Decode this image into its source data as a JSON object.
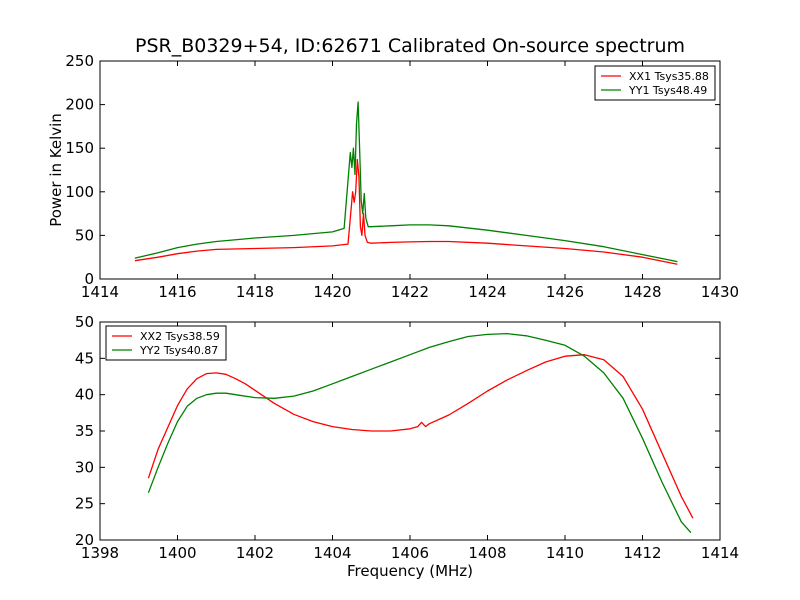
{
  "chart_data": [
    {
      "type": "line",
      "title": "PSR_B0329+54, ID:62671 Calibrated On-source spectrum",
      "xlabel": "",
      "ylabel": "Power in Kelvin",
      "xlim": [
        1414,
        1430
      ],
      "ylim": [
        0,
        250
      ],
      "xticks": [
        1414,
        1416,
        1418,
        1420,
        1422,
        1424,
        1426,
        1428,
        1430
      ],
      "yticks": [
        0,
        50,
        100,
        150,
        200,
        250
      ],
      "grid": false,
      "legend": "top-right",
      "series": [
        {
          "name": "XX1 Tsys35.88",
          "color": "#ff0000",
          "x": [
            1414.9,
            1415.5,
            1416.0,
            1416.5,
            1417.0,
            1418.0,
            1419.0,
            1420.0,
            1420.4,
            1420.48,
            1420.52,
            1420.56,
            1420.6,
            1420.64,
            1420.68,
            1420.72,
            1420.76,
            1420.8,
            1420.84,
            1420.9,
            1421.0,
            1421.5,
            1422.0,
            1422.5,
            1423.0,
            1424.0,
            1425.0,
            1426.0,
            1427.0,
            1428.0,
            1428.9
          ],
          "y": [
            21,
            25,
            29,
            32,
            34,
            35,
            36,
            38,
            40,
            80,
            100,
            88,
            100,
            137,
            118,
            60,
            50,
            75,
            50,
            42,
            41,
            42,
            42.5,
            43,
            43,
            41,
            38,
            35,
            31,
            25,
            17
          ]
        },
        {
          "name": "YY1 Tsys48.49",
          "color": "#008000",
          "x": [
            1414.9,
            1415.5,
            1416.0,
            1416.5,
            1417.0,
            1418.0,
            1419.0,
            1420.0,
            1420.3,
            1420.46,
            1420.5,
            1420.54,
            1420.58,
            1420.62,
            1420.66,
            1420.7,
            1420.74,
            1420.78,
            1420.82,
            1420.86,
            1420.92,
            1421.0,
            1421.5,
            1422.0,
            1422.5,
            1423.0,
            1424.0,
            1425.0,
            1426.0,
            1427.0,
            1428.0,
            1428.9
          ],
          "y": [
            24,
            30,
            36,
            40,
            43,
            47,
            50,
            54,
            58,
            145,
            128,
            150,
            120,
            178,
            203,
            150,
            90,
            75,
            98,
            70,
            60,
            60,
            61,
            62,
            62,
            61,
            56,
            50,
            44,
            37,
            28,
            20
          ]
        }
      ]
    },
    {
      "type": "line",
      "title": "",
      "xlabel": "Frequency (MHz)",
      "ylabel": "",
      "xlim": [
        1398,
        1414
      ],
      "ylim": [
        20,
        50
      ],
      "xticks": [
        1398,
        1400,
        1402,
        1404,
        1406,
        1408,
        1410,
        1412,
        1414
      ],
      "yticks": [
        20,
        25,
        30,
        35,
        40,
        45,
        50
      ],
      "grid": false,
      "legend": "top-left",
      "series": [
        {
          "name": "XX2 Tsys38.59",
          "color": "#ff0000",
          "x": [
            1399.25,
            1399.5,
            1399.75,
            1400.0,
            1400.25,
            1400.5,
            1400.75,
            1401.0,
            1401.25,
            1401.5,
            1401.75,
            1402.0,
            1402.5,
            1403.0,
            1403.5,
            1404.0,
            1404.5,
            1405.0,
            1405.5,
            1406.0,
            1406.2,
            1406.3,
            1406.4,
            1406.5,
            1407.0,
            1407.5,
            1408.0,
            1408.5,
            1409.0,
            1409.5,
            1410.0,
            1410.5,
            1411.0,
            1411.5,
            1412.0,
            1412.5,
            1413.0,
            1413.3
          ],
          "y": [
            28.5,
            32.5,
            35.5,
            38.5,
            40.8,
            42.2,
            42.9,
            43.0,
            42.8,
            42.2,
            41.5,
            40.6,
            38.8,
            37.3,
            36.3,
            35.6,
            35.2,
            35.0,
            35.0,
            35.3,
            35.6,
            36.2,
            35.6,
            36.0,
            37.2,
            38.8,
            40.5,
            42.0,
            43.3,
            44.5,
            45.3,
            45.5,
            44.8,
            42.5,
            38.0,
            32.0,
            26.0,
            23.0
          ]
        },
        {
          "name": "YY2 Tsys40.87",
          "color": "#008000",
          "x": [
            1399.25,
            1399.5,
            1399.75,
            1400.0,
            1400.25,
            1400.5,
            1400.75,
            1401.0,
            1401.25,
            1401.5,
            1402.0,
            1402.5,
            1403.0,
            1403.5,
            1404.0,
            1404.5,
            1405.0,
            1405.5,
            1406.0,
            1406.5,
            1407.0,
            1407.5,
            1408.0,
            1408.5,
            1409.0,
            1409.5,
            1410.0,
            1410.5,
            1411.0,
            1411.5,
            1412.0,
            1412.5,
            1413.0,
            1413.25
          ],
          "y": [
            26.5,
            30.0,
            33.3,
            36.3,
            38.4,
            39.5,
            40.0,
            40.2,
            40.2,
            40.0,
            39.6,
            39.5,
            39.8,
            40.5,
            41.5,
            42.5,
            43.5,
            44.5,
            45.5,
            46.5,
            47.3,
            48.0,
            48.3,
            48.4,
            48.1,
            47.5,
            46.8,
            45.3,
            43.0,
            39.5,
            34.0,
            28.0,
            22.5,
            21.0
          ]
        }
      ]
    }
  ]
}
